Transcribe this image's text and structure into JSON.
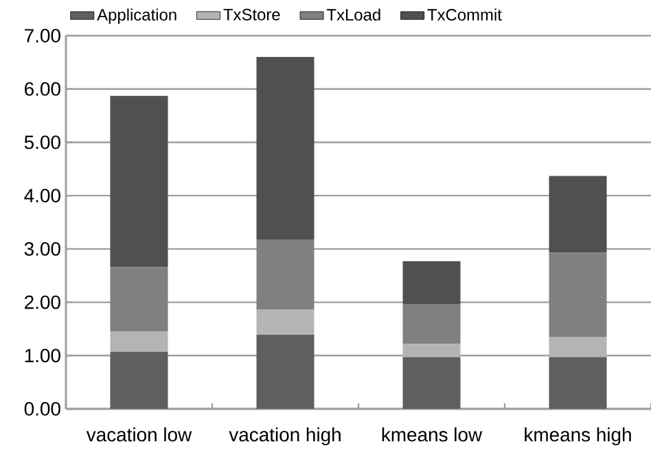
{
  "chart_data": {
    "type": "bar",
    "stacked": true,
    "categories": [
      "vacation low",
      "vacation high",
      "kmeans low",
      "kmeans high"
    ],
    "series": [
      {
        "name": "Application",
        "color": "#5f5f5f",
        "values": [
          1.07,
          1.39,
          0.97,
          0.97
        ]
      },
      {
        "name": "TxStore",
        "color": "#b4b4b4",
        "values": [
          0.38,
          0.47,
          0.25,
          0.38
        ]
      },
      {
        "name": "TxLoad",
        "color": "#808080",
        "values": [
          1.21,
          1.32,
          0.75,
          1.58
        ]
      },
      {
        "name": "TxCommit",
        "color": "#505050",
        "values": [
          3.21,
          3.42,
          0.8,
          1.44
        ]
      }
    ],
    "ylim": [
      0,
      7
    ],
    "yticks": [
      {
        "value": 0,
        "label": "0.00"
      },
      {
        "value": 1,
        "label": "1.00"
      },
      {
        "value": 2,
        "label": "2.00"
      },
      {
        "value": 3,
        "label": "3.00"
      },
      {
        "value": 4,
        "label": "4.00"
      },
      {
        "value": 5,
        "label": "5.00"
      },
      {
        "value": 6,
        "label": "6.00"
      },
      {
        "value": 7,
        "label": "7.00"
      }
    ],
    "grid": "y",
    "legend": "top"
  }
}
